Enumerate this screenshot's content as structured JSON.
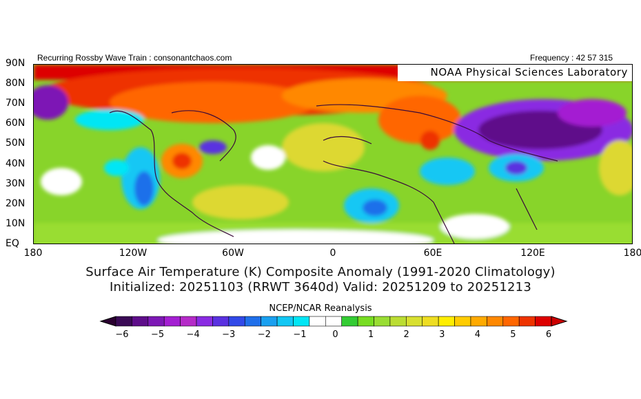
{
  "header": {
    "left": "Recurring Rossby Wave Train : consonantchaos.com",
    "right": "Frequency : 42 57 315"
  },
  "map": {
    "credit": "NOAA Physical Sciences Laboratory",
    "lat_labels": [
      "90N",
      "80N",
      "70N",
      "60N",
      "50N",
      "40N",
      "30N",
      "20N",
      "10N",
      "EQ"
    ],
    "lon_labels": [
      "180",
      "120W",
      "60W",
      "0",
      "60E",
      "120E",
      "180"
    ]
  },
  "titles": {
    "line1": "Surface Air Temperature (K) Composite Anomaly (1991-2020 Climatology)",
    "line2": "Initialized: 20251103 (RRWT 3640d) Valid: 20251209 to 20251213"
  },
  "colorbar": {
    "title": "NCEP/NCAR Reanalysis",
    "tick_labels": [
      "-6",
      "-5",
      "-4",
      "-3",
      "-2",
      "-1",
      "0",
      "1",
      "2",
      "3",
      "4",
      "5",
      "6"
    ],
    "colors": [
      "#3a0a55",
      "#5e0d8a",
      "#7d18b5",
      "#a41fd2",
      "#b52bc8",
      "#8a2be2",
      "#5a31e0",
      "#3149e8",
      "#1f6fea",
      "#1aa0f0",
      "#12c7f4",
      "#00e6f5",
      "#ffffff",
      "#ffffff",
      "#33cc33",
      "#77dd22",
      "#99dd33",
      "#bbdd33",
      "#d8e030",
      "#eedd22",
      "#ffee00",
      "#ffcc00",
      "#ffaa00",
      "#ff8800",
      "#ff6600",
      "#ee3300",
      "#dd0000"
    ],
    "min": -6,
    "max": 6
  }
}
